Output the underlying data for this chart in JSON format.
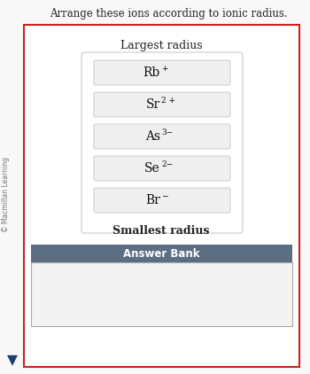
{
  "title": "Arrange these ions according to ionic radius.",
  "watermark": "© Macmillan Learning",
  "largest_label": "Largest radius",
  "smallest_label": "Smallest radius",
  "answer_bank_label": "Answer Bank",
  "ions": [
    {
      "text": "Rb",
      "superscript": "+"
    },
    {
      "text": "Sr",
      "superscript": "2 +"
    },
    {
      "text": "As",
      "superscript": "3−"
    },
    {
      "text": "Se",
      "superscript": "2−"
    },
    {
      "text": "Br",
      "superscript": "−"
    }
  ],
  "bg_color": "#f8f8f8",
  "outer_border_color": "#cc2222",
  "ion_box_bg": "#efefef",
  "ion_box_border": "#cccccc",
  "inner_box_bg": "#ffffff",
  "inner_box_border": "#cccccc",
  "answer_bank_header_bg": "#5b6e82",
  "answer_bank_header_color": "#ffffff",
  "answer_bank_body_bg": "#f3f3f3",
  "answer_bank_body_border": "#aaaaaa",
  "nav_arrow_color": "#1c3f6e",
  "fig_width": 3.5,
  "fig_height": 4.22
}
